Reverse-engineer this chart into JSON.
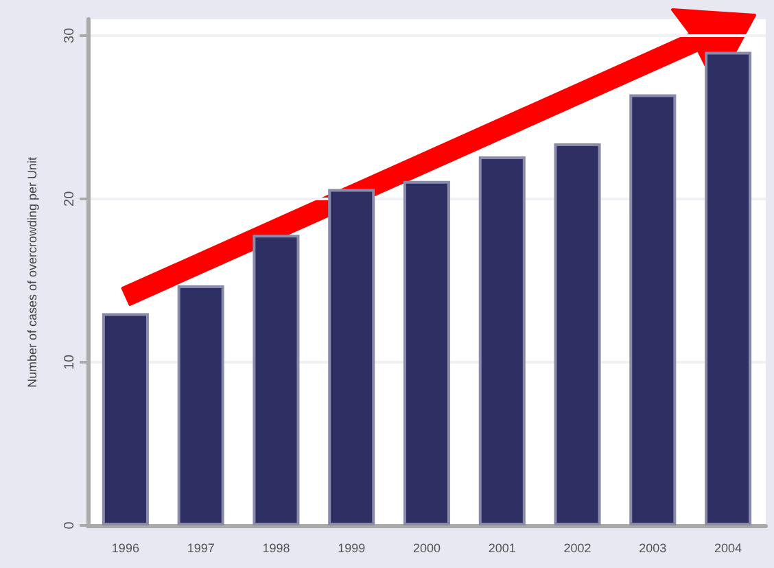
{
  "chart_data": {
    "type": "bar",
    "ylabel": "Number of cases of overcrowding per Unit",
    "categories": [
      "1996",
      "1997",
      "1998",
      "1999",
      "2000",
      "2001",
      "2002",
      "2003",
      "2004"
    ],
    "values": [
      13.0,
      14.7,
      17.8,
      20.6,
      21.1,
      22.6,
      23.4,
      26.4,
      29.0
    ],
    "color": "#2e2f62",
    "ylim": [
      0,
      31
    ],
    "yticks": [
      0,
      10,
      20,
      30
    ],
    "grid": "y"
  }
}
